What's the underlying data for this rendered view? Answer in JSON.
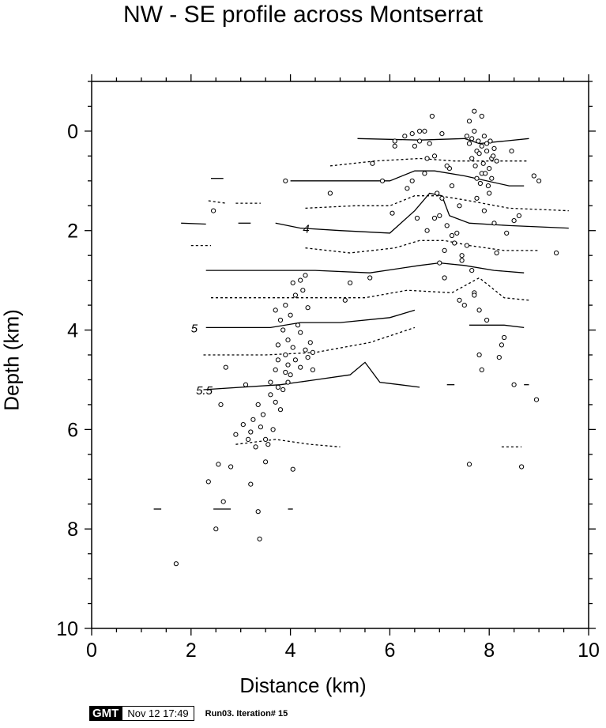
{
  "chart_data": {
    "type": "scatter",
    "title": "NW - SE profile across Montserrat",
    "xlabel": "Distance (km)",
    "ylabel": "Depth (km)",
    "xlim": [
      0,
      10
    ],
    "ylim": [
      10,
      -1
    ],
    "y_inverted": true,
    "xticks": [
      "0",
      "2",
      "4",
      "6",
      "8",
      "10"
    ],
    "yticks": [
      "0",
      "2",
      "4",
      "6",
      "8",
      "10"
    ],
    "grid": false,
    "contour_labels": [
      {
        "text": "4",
        "x": 4.25,
        "y": 1.95
      },
      {
        "text": "5",
        "x": 2.0,
        "y": 3.95
      },
      {
        "text": "5.5",
        "x": 2.1,
        "y": 5.2
      }
    ],
    "earthquakes": [
      [
        1.7,
        8.7
      ],
      [
        2.35,
        7.05
      ],
      [
        2.5,
        8.0
      ],
      [
        2.55,
        6.7
      ],
      [
        2.65,
        7.45
      ],
      [
        2.8,
        6.75
      ],
      [
        3.2,
        7.1
      ],
      [
        3.35,
        7.65
      ],
      [
        3.38,
        8.2
      ],
      [
        3.5,
        6.65
      ],
      [
        4.05,
        6.8
      ],
      [
        2.6,
        5.5
      ],
      [
        2.9,
        6.1
      ],
      [
        3.05,
        5.9
      ],
      [
        3.1,
        5.1
      ],
      [
        3.15,
        6.2
      ],
      [
        3.2,
        6.05
      ],
      [
        3.25,
        5.8
      ],
      [
        3.3,
        6.35
      ],
      [
        3.35,
        5.5
      ],
      [
        3.4,
        5.95
      ],
      [
        3.45,
        5.7
      ],
      [
        3.5,
        6.2
      ],
      [
        3.55,
        6.3
      ],
      [
        3.6,
        5.3
      ],
      [
        3.65,
        6.0
      ],
      [
        3.7,
        5.45
      ],
      [
        3.75,
        5.15
      ],
      [
        3.8,
        5.6
      ],
      [
        3.85,
        5.2
      ],
      [
        3.9,
        4.85
      ],
      [
        3.95,
        5.05
      ],
      [
        3.7,
        3.6
      ],
      [
        3.75,
        4.3
      ],
      [
        3.8,
        3.8
      ],
      [
        3.85,
        4.0
      ],
      [
        3.9,
        3.5
      ],
      [
        3.9,
        4.5
      ],
      [
        3.95,
        4.2
      ],
      [
        4.0,
        3.7
      ],
      [
        4.05,
        4.35
      ],
      [
        4.1,
        3.3
      ],
      [
        4.1,
        4.6
      ],
      [
        4.15,
        3.9
      ],
      [
        4.2,
        4.05
      ],
      [
        4.2,
        4.75
      ],
      [
        4.25,
        3.2
      ],
      [
        4.3,
        4.4
      ],
      [
        4.3,
        2.9
      ],
      [
        4.35,
        3.55
      ],
      [
        4.4,
        4.25
      ],
      [
        4.45,
        4.8
      ],
      [
        4.2,
        3.0
      ],
      [
        3.75,
        4.6
      ],
      [
        3.95,
        4.7
      ],
      [
        4.05,
        3.05
      ],
      [
        3.7,
        4.8
      ],
      [
        4.35,
        4.55
      ],
      [
        4.45,
        4.45
      ],
      [
        3.6,
        5.05
      ],
      [
        2.7,
        4.75
      ],
      [
        4.0,
        4.9
      ],
      [
        2.45,
        1.6
      ],
      [
        3.9,
        1.0
      ],
      [
        4.8,
        1.25
      ],
      [
        5.1,
        3.4
      ],
      [
        5.2,
        3.05
      ],
      [
        5.6,
        2.95
      ],
      [
        5.65,
        0.65
      ],
      [
        5.85,
        1.0
      ],
      [
        6.1,
        0.3
      ],
      [
        6.05,
        1.65
      ],
      [
        6.3,
        0.1
      ],
      [
        6.35,
        1.15
      ],
      [
        6.45,
        0.05
      ],
      [
        6.55,
        1.75
      ],
      [
        6.6,
        0.2
      ],
      [
        6.7,
        0.0
      ],
      [
        6.8,
        0.25
      ],
      [
        6.9,
        0.5
      ],
      [
        6.95,
        1.25
      ],
      [
        7.0,
        1.7
      ],
      [
        7.05,
        1.35
      ],
      [
        7.1,
        2.4
      ],
      [
        7.15,
        1.9
      ],
      [
        7.2,
        0.75
      ],
      [
        7.25,
        1.1
      ],
      [
        7.3,
        2.25
      ],
      [
        7.35,
        2.05
      ],
      [
        7.4,
        1.5
      ],
      [
        7.45,
        2.6
      ],
      [
        7.5,
        3.5
      ],
      [
        7.55,
        2.3
      ],
      [
        7.6,
        6.7
      ],
      [
        7.65,
        2.8
      ],
      [
        7.65,
        0.15
      ],
      [
        7.7,
        3.25
      ],
      [
        7.75,
        0.4
      ],
      [
        7.75,
        1.35
      ],
      [
        7.8,
        3.6
      ],
      [
        7.85,
        0.85
      ],
      [
        7.9,
        1.6
      ],
      [
        7.95,
        0.25
      ],
      [
        8.0,
        1.25
      ],
      [
        8.05,
        0.55
      ],
      [
        8.1,
        1.85
      ],
      [
        8.15,
        2.45
      ],
      [
        8.2,
        4.55
      ],
      [
        8.25,
        4.3
      ],
      [
        8.3,
        4.15
      ],
      [
        8.35,
        2.05
      ],
      [
        8.5,
        1.8
      ],
      [
        8.5,
        5.1
      ],
      [
        8.6,
        1.7
      ],
      [
        8.65,
        6.75
      ],
      [
        8.9,
        0.9
      ],
      [
        8.95,
        5.4
      ],
      [
        9.0,
        1.0
      ],
      [
        9.35,
        2.45
      ],
      [
        6.5,
        0.3
      ],
      [
        6.75,
        0.55
      ],
      [
        7.05,
        0.05
      ],
      [
        7.55,
        0.1
      ],
      [
        7.6,
        0.25
      ],
      [
        7.65,
        0.55
      ],
      [
        7.7,
        0.0
      ],
      [
        7.72,
        0.7
      ],
      [
        7.75,
        0.95
      ],
      [
        7.78,
        0.2
      ],
      [
        7.8,
        0.45
      ],
      [
        7.82,
        1.05
      ],
      [
        7.85,
        0.3
      ],
      [
        7.88,
        0.65
      ],
      [
        7.9,
        0.1
      ],
      [
        7.92,
        0.85
      ],
      [
        7.95,
        0.4
      ],
      [
        7.98,
        1.1
      ],
      [
        8.0,
        0.75
      ],
      [
        8.02,
        0.2
      ],
      [
        8.05,
        0.95
      ],
      [
        8.08,
        0.5
      ],
      [
        8.1,
        0.35
      ],
      [
        7.6,
        -0.2
      ],
      [
        7.7,
        -0.4
      ],
      [
        7.85,
        -0.3
      ],
      [
        8.15,
        0.6
      ],
      [
        8.45,
        0.4
      ],
      [
        6.7,
        0.85
      ],
      [
        7.15,
        0.7
      ],
      [
        7.0,
        2.65
      ],
      [
        7.1,
        2.95
      ],
      [
        6.85,
        -0.3
      ],
      [
        6.6,
        0.0
      ],
      [
        6.1,
        0.2
      ],
      [
        7.4,
        3.4
      ],
      [
        7.7,
        3.3
      ],
      [
        7.85,
        4.8
      ],
      [
        7.8,
        4.5
      ],
      [
        7.95,
        3.8
      ],
      [
        7.45,
        2.5
      ],
      [
        7.25,
        2.1
      ],
      [
        6.9,
        1.75
      ],
      [
        6.75,
        2.0
      ],
      [
        6.45,
        1.0
      ]
    ],
    "contours": [
      {
        "style": "solid",
        "pts": [
          [
            5.35,
            0.15
          ],
          [
            6.6,
            0.18
          ],
          [
            7.5,
            0.15
          ],
          [
            7.8,
            0.25
          ],
          [
            8.3,
            0.2
          ],
          [
            8.8,
            0.15
          ]
        ]
      },
      {
        "style": "dashed",
        "pts": [
          [
            4.8,
            0.7
          ],
          [
            5.7,
            0.6
          ],
          [
            6.6,
            0.55
          ],
          [
            7.3,
            0.6
          ],
          [
            8.1,
            0.6
          ],
          [
            8.75,
            0.6
          ]
        ]
      },
      {
        "style": "solid",
        "pts": [
          [
            4.0,
            1.0
          ],
          [
            5.3,
            1.0
          ],
          [
            6.0,
            1.0
          ],
          [
            6.5,
            0.8
          ],
          [
            6.9,
            0.8
          ],
          [
            7.5,
            0.9
          ],
          [
            8.4,
            1.1
          ],
          [
            8.7,
            1.1
          ]
        ]
      },
      {
        "style": "dashed",
        "pts": [
          [
            4.3,
            1.55
          ],
          [
            5.3,
            1.5
          ],
          [
            6.0,
            1.5
          ],
          [
            6.5,
            1.3
          ],
          [
            7.0,
            1.3
          ],
          [
            7.6,
            1.4
          ],
          [
            8.4,
            1.55
          ],
          [
            9.6,
            1.6
          ]
        ]
      },
      {
        "style": "solid",
        "pts": [
          [
            3.7,
            1.85
          ],
          [
            4.2,
            1.95
          ],
          [
            5.0,
            2.0
          ],
          [
            6.0,
            2.05
          ],
          [
            6.5,
            1.6
          ],
          [
            6.8,
            1.25
          ],
          [
            7.05,
            1.3
          ],
          [
            7.2,
            1.7
          ],
          [
            7.6,
            1.85
          ],
          [
            8.4,
            1.9
          ],
          [
            9.6,
            1.95
          ]
        ]
      },
      {
        "style": "dashed",
        "pts": [
          [
            4.3,
            2.35
          ],
          [
            5.2,
            2.45
          ],
          [
            6.1,
            2.35
          ],
          [
            6.6,
            2.2
          ],
          [
            7.1,
            2.2
          ],
          [
            7.6,
            2.3
          ],
          [
            8.3,
            2.4
          ],
          [
            9.0,
            2.4
          ]
        ]
      },
      {
        "style": "solid",
        "pts": [
          [
            2.3,
            2.8
          ],
          [
            3.5,
            2.8
          ],
          [
            4.5,
            2.8
          ],
          [
            5.6,
            2.85
          ],
          [
            6.6,
            2.7
          ],
          [
            7.0,
            2.65
          ],
          [
            7.5,
            2.7
          ],
          [
            8.1,
            2.8
          ],
          [
            8.7,
            2.85
          ]
        ]
      },
      {
        "style": "dashed",
        "pts": [
          [
            2.4,
            3.35
          ],
          [
            3.6,
            3.35
          ],
          [
            4.6,
            3.35
          ],
          [
            5.5,
            3.35
          ],
          [
            6.35,
            3.2
          ],
          [
            7.25,
            3.25
          ],
          [
            7.8,
            2.95
          ],
          [
            8.3,
            3.35
          ],
          [
            8.8,
            3.4
          ]
        ]
      },
      {
        "style": "solid",
        "pts": [
          [
            2.3,
            3.95
          ],
          [
            3.6,
            3.95
          ],
          [
            4.2,
            3.85
          ],
          [
            5.0,
            3.85
          ],
          [
            6.0,
            3.75
          ],
          [
            6.5,
            3.6
          ]
        ]
      },
      {
        "style": "solid",
        "pts": [
          [
            7.6,
            3.9
          ],
          [
            8.3,
            3.9
          ],
          [
            8.7,
            3.95
          ]
        ]
      },
      {
        "style": "dashed",
        "pts": [
          [
            2.25,
            4.5
          ],
          [
            3.5,
            4.5
          ],
          [
            4.5,
            4.45
          ],
          [
            5.6,
            4.25
          ],
          [
            6.5,
            3.95
          ]
        ]
      },
      {
        "style": "solid",
        "pts": [
          [
            2.25,
            5.2
          ],
          [
            3.8,
            5.1
          ],
          [
            4.5,
            5.0
          ],
          [
            5.2,
            4.9
          ],
          [
            5.5,
            4.65
          ],
          [
            5.8,
            5.05
          ],
          [
            6.2,
            5.1
          ],
          [
            6.6,
            5.15
          ]
        ]
      },
      {
        "style": "dashed",
        "pts": [
          [
            2.9,
            6.3
          ],
          [
            3.7,
            6.2
          ],
          [
            4.4,
            6.3
          ],
          [
            5.0,
            6.35
          ]
        ]
      },
      {
        "style": "solid",
        "pts": [
          [
            2.45,
            7.6
          ],
          [
            2.8,
            7.6
          ]
        ]
      },
      {
        "style": "dashed",
        "pts": [
          [
            2.0,
            2.3
          ],
          [
            2.4,
            2.3
          ]
        ]
      },
      {
        "style": "solid",
        "pts": [
          [
            1.8,
            1.85
          ],
          [
            2.3,
            1.87
          ]
        ]
      },
      {
        "style": "dashed",
        "pts": [
          [
            2.9,
            1.45
          ],
          [
            3.4,
            1.45
          ]
        ]
      },
      {
        "style": "solid",
        "pts": [
          [
            2.4,
            0.95
          ],
          [
            2.65,
            0.95
          ]
        ]
      },
      {
        "style": "dashed",
        "pts": [
          [
            2.35,
            1.4
          ],
          [
            2.7,
            1.45
          ]
        ]
      },
      {
        "style": "solid",
        "pts": [
          [
            1.25,
            7.6
          ],
          [
            1.4,
            7.6
          ]
        ]
      },
      {
        "style": "solid",
        "pts": [
          [
            3.95,
            7.6
          ],
          [
            4.05,
            7.6
          ]
        ]
      },
      {
        "style": "dashed",
        "pts": [
          [
            8.25,
            6.35
          ],
          [
            8.65,
            6.35
          ]
        ]
      },
      {
        "style": "solid",
        "pts": [
          [
            8.7,
            5.1
          ],
          [
            8.8,
            5.1
          ]
        ]
      },
      {
        "style": "solid",
        "pts": [
          [
            7.15,
            5.1
          ],
          [
            7.3,
            5.1
          ]
        ]
      },
      {
        "style": "solid",
        "pts": [
          [
            2.95,
            1.85
          ],
          [
            3.2,
            1.85
          ]
        ]
      }
    ]
  },
  "stamp": {
    "logo": "GMT",
    "date": "Nov 12 17:49",
    "run": "Run03.  Iteration# 15"
  }
}
